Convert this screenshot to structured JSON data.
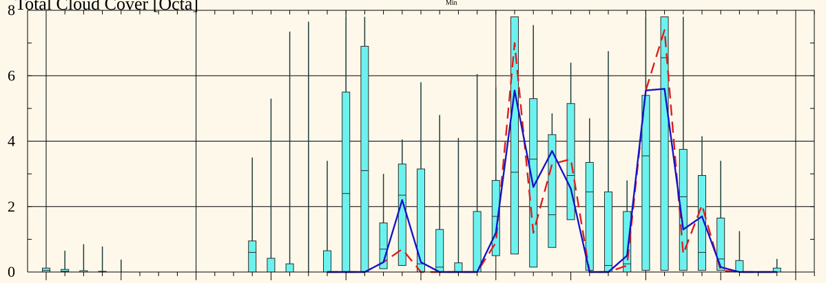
{
  "chart_data": {
    "type": "box",
    "title": "Total Cloud Cover [Octa]",
    "subtitle": "Min",
    "xlabel": "",
    "ylabel": "",
    "ylim": [
      0,
      8
    ],
    "yticks": [
      0,
      2,
      4,
      6,
      8
    ],
    "grid": true,
    "colors": {
      "background": "#fdf8ea",
      "box": "#6cf2ee",
      "box_stroke": "#2a2a2a",
      "whisker": "#1c3c3c",
      "grid": "#000000",
      "median_line": "#1414c8",
      "mean_line": "#dc1e1e"
    },
    "x": [
      1,
      2,
      3,
      4,
      5,
      6,
      7,
      8,
      9,
      10,
      11,
      12,
      13,
      14,
      15,
      16,
      17,
      18,
      19,
      20,
      21,
      22,
      23,
      24,
      25,
      26,
      27,
      28,
      29,
      30,
      31,
      32,
      33,
      34,
      35,
      36,
      37,
      38,
      39,
      40,
      41,
      42
    ],
    "boxes": [
      {
        "q1": 0,
        "q3": 0.12,
        "med": 0.05,
        "whisk": 0.12
      },
      {
        "q1": 0,
        "q3": 0.08,
        "med": 0.02,
        "whisk": 0.65
      },
      {
        "q1": 0,
        "q3": 0.04,
        "med": 0,
        "whisk": 0.85
      },
      {
        "q1": 0,
        "q3": 0.02,
        "med": 0,
        "whisk": 0.78
      },
      {
        "q1": 0,
        "q3": 0,
        "med": 0,
        "whisk": 0.38
      },
      {
        "q1": 0,
        "q3": 0,
        "med": 0,
        "whisk": 0
      },
      {
        "q1": 0,
        "q3": 0,
        "med": 0,
        "whisk": 0
      },
      {
        "q1": 0,
        "q3": 0,
        "med": 0,
        "whisk": 0
      },
      {
        "q1": 0,
        "q3": 0,
        "med": 0,
        "whisk": 0
      },
      {
        "q1": 0,
        "q3": 0,
        "med": 0,
        "whisk": 0
      },
      {
        "q1": 0,
        "q3": 0,
        "med": 0,
        "whisk": 0
      },
      {
        "q1": 0,
        "q3": 0.95,
        "med": 0.6,
        "whisk": 3.5
      },
      {
        "q1": 0,
        "q3": 0.42,
        "med": 0,
        "whisk": 5.3
      },
      {
        "q1": 0,
        "q3": 0.25,
        "med": 0,
        "whisk": 7.35
      },
      {
        "q1": 0,
        "q3": 0,
        "med": 0,
        "whisk": 7.65
      },
      {
        "q1": 0,
        "q3": 0.65,
        "med": 0,
        "whisk": 3.4
      },
      {
        "q1": 0,
        "q3": 5.5,
        "med": 2.4,
        "whisk": 7.8
      },
      {
        "q1": 0,
        "q3": 6.9,
        "med": 3.1,
        "whisk": 7.8
      },
      {
        "q1": 0.1,
        "q3": 1.5,
        "med": 0.7,
        "whisk": 3.0
      },
      {
        "q1": 0.2,
        "q3": 3.3,
        "med": 2.35,
        "whisk": 4.05
      },
      {
        "q1": 0,
        "q3": 3.15,
        "med": 0.25,
        "whisk": 5.8
      },
      {
        "q1": 0,
        "q3": 1.3,
        "med": 0.15,
        "whisk": 4.8
      },
      {
        "q1": 0,
        "q3": 0.28,
        "med": 0,
        "whisk": 4.1
      },
      {
        "q1": 0,
        "q3": 1.85,
        "med": 0,
        "whisk": 6.05
      },
      {
        "q1": 0.5,
        "q3": 2.8,
        "med": 1.7,
        "whisk": 5.65
      },
      {
        "q1": 0.55,
        "q3": 7.8,
        "med": 3.05,
        "whisk": 7.8
      },
      {
        "q1": 0.15,
        "q3": 5.3,
        "med": 3.45,
        "whisk": 7.55
      },
      {
        "q1": 0.75,
        "q3": 4.2,
        "med": 1.75,
        "whisk": 4.85
      },
      {
        "q1": 1.6,
        "q3": 5.15,
        "med": 2.95,
        "whisk": 6.4
      },
      {
        "q1": 0.05,
        "q3": 3.35,
        "med": 2.45,
        "whisk": 4.7
      },
      {
        "q1": 0,
        "q3": 2.45,
        "med": 0.2,
        "whisk": 6.75
      },
      {
        "q1": 0,
        "q3": 1.85,
        "med": 0.25,
        "whisk": 2.8
      },
      {
        "q1": 0.05,
        "q3": 5.4,
        "med": 3.55,
        "whisk": 7.8
      },
      {
        "q1": 0.05,
        "q3": 7.8,
        "med": 6.55,
        "whisk": 7.8
      },
      {
        "q1": 0.05,
        "q3": 3.75,
        "med": 2.3,
        "whisk": 7.8
      },
      {
        "q1": 0.05,
        "q3": 2.95,
        "med": 0.6,
        "whisk": 4.15
      },
      {
        "q1": 0.05,
        "q3": 1.65,
        "med": 0.4,
        "whisk": 3.4
      },
      {
        "q1": 0,
        "q3": 0.35,
        "med": 0,
        "whisk": 1.25
      },
      {
        "q1": 0,
        "q3": 0,
        "med": 0,
        "whisk": 0
      },
      {
        "q1": 0,
        "q3": 0.12,
        "med": 0,
        "whisk": 0.4
      }
    ],
    "box_x": [
      1,
      2,
      3,
      4,
      5,
      6,
      7,
      8,
      9,
      10,
      11,
      12,
      13,
      14,
      15,
      16,
      17,
      18,
      19,
      20,
      21,
      22,
      23,
      24,
      25,
      26,
      27,
      28,
      29,
      30,
      31,
      32,
      33,
      34,
      35,
      36,
      37,
      38,
      39,
      40
    ],
    "series": [
      {
        "x": [
          16,
          17,
          18,
          19,
          20,
          21,
          22,
          23,
          24,
          25,
          26,
          27,
          28,
          29,
          30,
          31,
          32,
          33,
          34,
          35,
          36,
          37,
          38,
          39,
          40
        ],
        "values": [
          0,
          0,
          0,
          0.3,
          2.2,
          0.3,
          0,
          0,
          0,
          1.2,
          5.55,
          2.6,
          3.7,
          2.55,
          0,
          0,
          0.5,
          5.55,
          5.6,
          1.3,
          1.7,
          0.15,
          0,
          0,
          0
        ]
      },
      {
        "x": [
          16,
          17,
          18,
          19,
          20,
          21,
          22,
          23,
          24,
          25,
          26,
          27,
          28,
          29,
          30,
          31,
          32,
          33,
          34,
          35,
          36,
          37,
          38,
          39,
          40
        ],
        "values": [
          0,
          0,
          0,
          0.3,
          0.7,
          0,
          0,
          0,
          0,
          0.9,
          7.0,
          1.2,
          3.3,
          3.45,
          0,
          0,
          0.2,
          5.55,
          7.4,
          0.55,
          2.05,
          0.05,
          0,
          0,
          0
        ]
      }
    ]
  }
}
